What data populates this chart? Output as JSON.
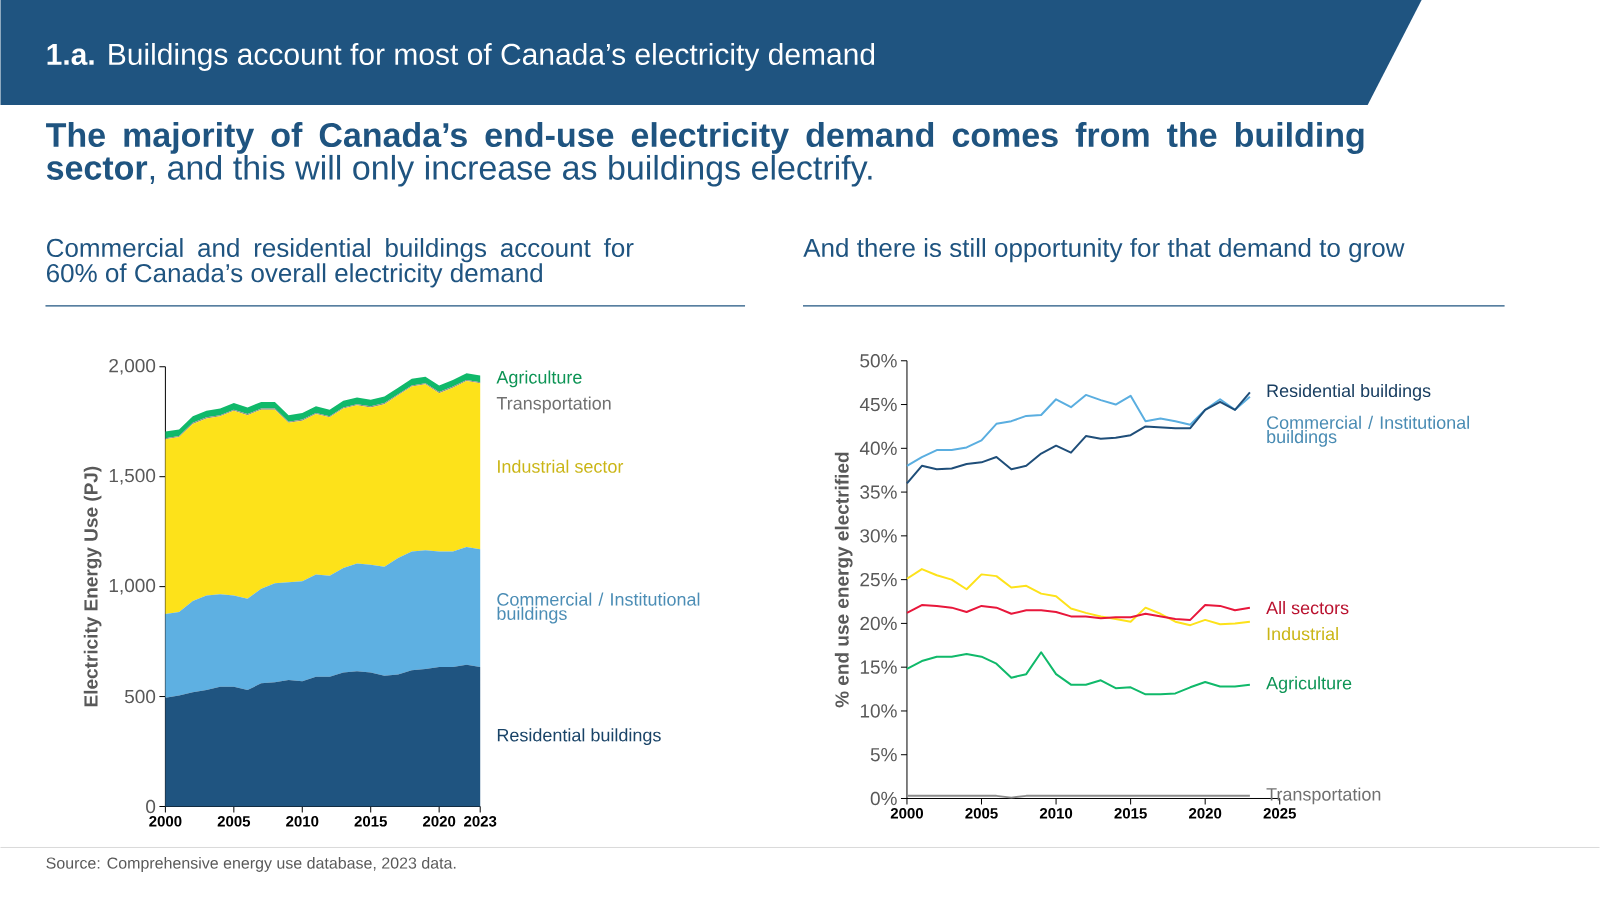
{
  "chart_data": [
    {
      "type": "area",
      "stacked": true,
      "title": "Commercial and residential buildings account for 60% of Canada’s overall electricity demand",
      "ylabel": "Electricity Energy Use (PJ)",
      "x": [
        2000,
        2001,
        2002,
        2003,
        2004,
        2005,
        2006,
        2007,
        2008,
        2009,
        2010,
        2011,
        2012,
        2013,
        2014,
        2015,
        2016,
        2017,
        2018,
        2019,
        2020,
        2021,
        2022,
        2023
      ],
      "xlim": [
        2000,
        2023
      ],
      "xticks": [
        2000,
        2005,
        2010,
        2015,
        2020,
        2023
      ],
      "ylim": [
        0,
        2000
      ],
      "yticks": [
        0,
        500,
        {
          "value": 1000,
          "label": "1,000"
        },
        {
          "value": 1500,
          "label": "1,500"
        },
        {
          "value": 2000,
          "label": "2,000"
        }
      ],
      "series": [
        {
          "name": "Residential buildings",
          "color": "#1f5480",
          "values": [
            495,
            505,
            520,
            530,
            545,
            545,
            530,
            560,
            565,
            575,
            570,
            590,
            590,
            610,
            615,
            610,
            595,
            600,
            620,
            625,
            635,
            635,
            645,
            635
          ]
        },
        {
          "name": "Commercial / Institutional buildings",
          "color": "#5eb0e2",
          "values": [
            380,
            380,
            415,
            430,
            420,
            415,
            415,
            430,
            450,
            445,
            455,
            465,
            460,
            475,
            490,
            490,
            495,
            530,
            540,
            540,
            525,
            525,
            535,
            535
          ]
        },
        {
          "name": "Industrial sector",
          "color": "#fde21a",
          "values": [
            795,
            795,
            805,
            805,
            810,
            840,
            835,
            815,
            790,
            725,
            730,
            730,
            720,
            725,
            720,
            715,
            740,
            740,
            750,
            755,
            720,
            745,
            755,
            755
          ]
        },
        {
          "name": "Transportation",
          "color": "#8c8c8c",
          "values": [
            5,
            5,
            5,
            5,
            5,
            5,
            5,
            5,
            5,
            5,
            5,
            5,
            5,
            5,
            5,
            5,
            5,
            5,
            5,
            5,
            5,
            5,
            5,
            5
          ]
        },
        {
          "name": "Agriculture",
          "color": "#10b96a",
          "values": [
            30,
            30,
            30,
            30,
            30,
            30,
            30,
            30,
            30,
            30,
            30,
            30,
            30,
            30,
            30,
            30,
            30,
            30,
            30,
            30,
            30,
            30,
            30,
            30
          ]
        }
      ],
      "annotations": [
        "**1.a.** Buildings account for most of Canada’s electricity demand",
        "**The majority of Canada’s end-use electricity demand comes from the building sector**, and this will only increase as buildings electrify.",
        "Source: Comprehensive energy use database, 2023 data."
      ]
    },
    {
      "type": "line",
      "title": "And there is still opportunity for that demand to grow",
      "ylabel": "% end use energy electrified",
      "x": [
        2000,
        2001,
        2002,
        2003,
        2004,
        2005,
        2006,
        2007,
        2008,
        2009,
        2010,
        2011,
        2012,
        2013,
        2014,
        2015,
        2016,
        2017,
        2018,
        2019,
        2020,
        2021,
        2022,
        2023
      ],
      "xlim": [
        2000,
        2025
      ],
      "xticks": [
        2000,
        2005,
        2010,
        2015,
        2020,
        2025
      ],
      "ylim": [
        0,
        50
      ],
      "yticks": [
        {
          "value": 0,
          "label": "0%"
        },
        {
          "value": 5,
          "label": "5%"
        },
        {
          "value": 10,
          "label": "10%"
        },
        {
          "value": 15,
          "label": "15%"
        },
        {
          "value": 20,
          "label": "20%"
        },
        {
          "value": 25,
          "label": "25%"
        },
        {
          "value": 30,
          "label": "30%"
        },
        {
          "value": 35,
          "label": "35%"
        },
        {
          "value": 40,
          "label": "40%"
        },
        {
          "value": 45,
          "label": "45%"
        },
        {
          "value": 50,
          "label": "50%"
        }
      ],
      "series": [
        {
          "name": "Transportation",
          "color": "#8c8c8c",
          "values": [
            0.3,
            0.3,
            0.3,
            0.3,
            0.3,
            0.3,
            0.3,
            0.1,
            0.3,
            0.3,
            0.3,
            0.3,
            0.3,
            0.3,
            0.3,
            0.3,
            0.3,
            0.3,
            0.3,
            0.3,
            0.3,
            0.3,
            0.3,
            0.3
          ]
        },
        {
          "name": "Agriculture",
          "color": "#10b96a",
          "values": [
            14.8,
            15.7,
            16.2,
            16.2,
            16.5,
            16.2,
            15.4,
            13.8,
            14.2,
            16.7,
            14.2,
            13.0,
            13.0,
            13.5,
            12.6,
            12.7,
            11.9,
            11.9,
            12.0,
            12.7,
            13.3,
            12.8,
            12.8,
            13.0
          ]
        },
        {
          "name": "Industrial",
          "color": "#fde21a",
          "values": [
            25.1,
            26.2,
            25.5,
            25.0,
            23.9,
            25.6,
            25.4,
            24.1,
            24.3,
            23.4,
            23.1,
            21.7,
            21.2,
            20.8,
            20.5,
            20.2,
            21.8,
            21.1,
            20.2,
            19.8,
            20.4,
            19.9,
            20.0,
            20.2
          ]
        },
        {
          "name": "Commercial / Institutional buildings",
          "color": "#5aaee0",
          "values": [
            38.0,
            39.0,
            39.8,
            39.8,
            40.1,
            40.9,
            42.8,
            43.1,
            43.7,
            43.8,
            45.6,
            44.7,
            46.1,
            45.5,
            45.0,
            46.0,
            43.1,
            43.4,
            43.1,
            42.7,
            44.4,
            45.6,
            44.4,
            45.9
          ]
        },
        {
          "name": "Residential buildings",
          "color": "#1f4e79",
          "values": [
            36.0,
            38.0,
            37.6,
            37.7,
            38.2,
            38.4,
            39.0,
            37.6,
            38.0,
            39.4,
            40.3,
            39.5,
            41.4,
            41.1,
            41.2,
            41.5,
            42.5,
            42.4,
            42.3,
            42.3,
            44.4,
            45.3,
            44.4,
            46.4
          ]
        },
        {
          "name": "All sectors",
          "color": "#e8173b",
          "values": [
            21.2,
            22.1,
            22.0,
            21.8,
            21.3,
            22.0,
            21.8,
            21.1,
            21.5,
            21.5,
            21.3,
            20.8,
            20.8,
            20.6,
            20.7,
            20.7,
            21.1,
            20.8,
            20.5,
            20.4,
            22.1,
            22.0,
            21.5,
            21.8
          ]
        }
      ]
    }
  ]
}
